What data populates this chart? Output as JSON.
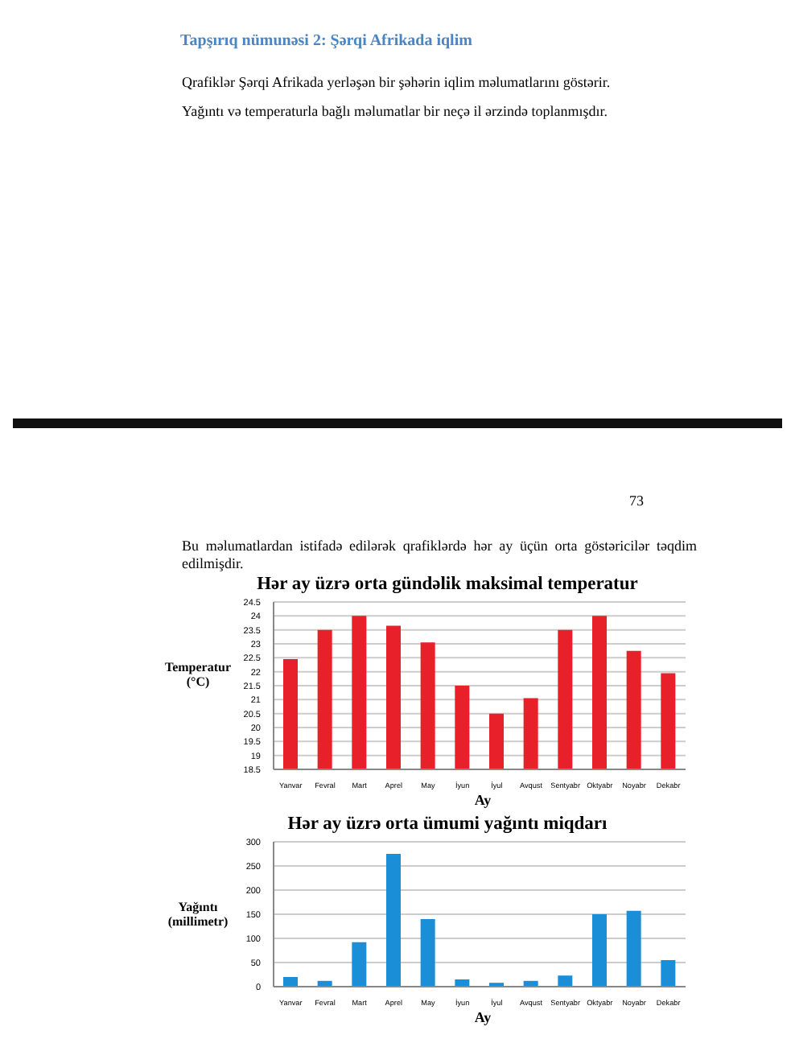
{
  "chart_data": [
    {
      "type": "bar",
      "title": "Hər ay üzrə orta gündəlik maksimal temperatur",
      "xlabel": "Ay",
      "ylabel": "Temperatur (°C)",
      "annotations": [
        "Tapşırıq nümunəsi 2: Şərqi Afrikada iqlim",
        "Qrafiklər Şərqi Afrikada yerləşən bir şəhərin iqlim məlumatlarını göstərir.",
        "Yağıntı və temperaturla bağlı məlumatlar bir neçə il ərzində toplanmışdır.",
        "73",
        "Bu məlumatlardan istifadə edilərək qrafiklərdə hər ay üçün orta göstəricilər təqdim edilmişdir."
      ],
      "categories": [
        "Yanvar",
        "Fevral",
        "Mart",
        "Aprel",
        "May",
        "İyun",
        "İyul",
        "Avqust",
        "Sentyabr",
        "Oktyabr",
        "Noyabr",
        "Dekabr"
      ],
      "values": [
        22.45,
        23.5,
        24,
        23.65,
        23.05,
        21.5,
        20.5,
        21.05,
        23.5,
        24,
        22.75,
        21.95
      ],
      "color": "#e8202a",
      "ylim": [
        18.5,
        24.5
      ],
      "yticks": [
        18.5,
        19,
        19.5,
        20,
        20.5,
        21,
        21.5,
        22,
        22.5,
        23,
        23.5,
        24,
        24.5
      ],
      "grid": "y"
    },
    {
      "type": "bar",
      "title": "Hər ay üzrə orta ümumi yağıntı miqdarı",
      "xlabel": "Ay",
      "ylabel": "Yağıntı (millimetr)",
      "categories": [
        "Yanvar",
        "Fevral",
        "Mart",
        "Aprel",
        "May",
        "İyun",
        "İyul",
        "Avqust",
        "Sentyabr",
        "Oktyabr",
        "Noyabr",
        "Dekabr"
      ],
      "values": [
        20,
        12,
        92,
        275,
        140,
        15,
        8,
        12,
        23,
        150,
        157,
        55
      ],
      "color": "#1b8ed8",
      "ylim": [
        0,
        300
      ],
      "yticks": [
        0,
        50,
        100,
        150,
        200,
        250,
        300
      ],
      "grid": "y"
    }
  ]
}
